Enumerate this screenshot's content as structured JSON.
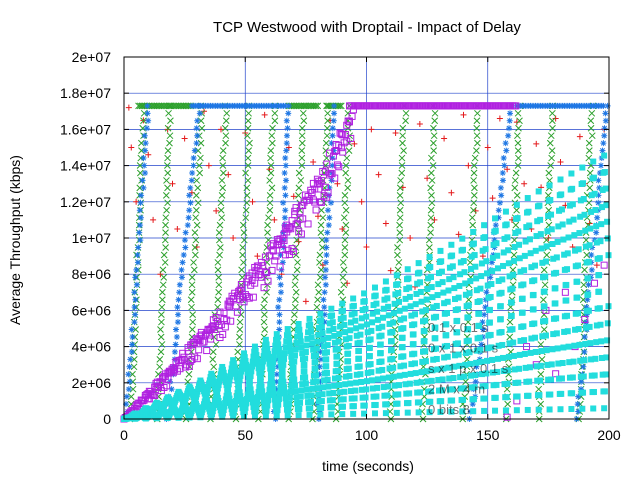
{
  "chart_data": {
    "type": "scatter",
    "title": "TCP Westwood with Droptail - Impact of Delay",
    "xlabel": "time (seconds)",
    "ylabel": "Average Throughput (kbps)",
    "xlim": [
      0,
      200
    ],
    "ylim": [
      0,
      20000000
    ],
    "x_ticks": [
      0,
      50,
      100,
      150,
      200
    ],
    "y_ticks": [
      0,
      2000000,
      4000000,
      6000000,
      8000000,
      10000000,
      12000000,
      14000000,
      16000000,
      18000000,
      20000000
    ],
    "x_tick_labels": [
      "0",
      "50",
      "100",
      "150",
      "200"
    ],
    "y_tick_labels": [
      "0",
      "2e+06",
      "4e+06",
      "6e+06",
      "8e+06",
      "1e+07",
      "1.2e+07",
      "1.4e+07",
      "1.6e+07",
      "1.8e+07",
      "2e+07"
    ],
    "grid": true,
    "legend_lines": [
      "0.1 x 0.1 s",
      "0 x 1 x 0.1 s",
      "s x 1 p x 0.1 s",
      "2 M x 4 m",
      "0 bits 8"
    ],
    "legend_position": "bottom-right (partially obscured)",
    "colors": {
      "red": "#e41a1c",
      "green": "#2ca02c",
      "blue": "#1f77e4",
      "magenta": "#b020e0",
      "cyan": "#22dddd",
      "grid": "#2244cc"
    },
    "series": [
      {
        "marker": "plus",
        "color": "#e41a1c",
        "pattern": "scattered",
        "cap": 17300000,
        "points": [
          [
            2,
            17200000
          ],
          [
            3,
            15000000
          ],
          [
            5,
            12000000
          ],
          [
            8,
            16500000
          ],
          [
            10,
            14600000
          ],
          [
            12,
            11000000
          ],
          [
            15,
            8000000
          ],
          [
            18,
            16000000
          ],
          [
            20,
            13000000
          ],
          [
            22,
            10500000
          ],
          [
            25,
            15500000
          ],
          [
            28,
            12500000
          ],
          [
            30,
            9500000
          ],
          [
            33,
            17000000
          ],
          [
            35,
            14000000
          ],
          [
            38,
            11500000
          ],
          [
            40,
            16000000
          ],
          [
            43,
            13500000
          ],
          [
            45,
            10000000
          ],
          [
            48,
            7000000
          ],
          [
            50,
            15800000
          ],
          [
            53,
            12000000
          ],
          [
            55,
            9000000
          ],
          [
            58,
            16800000
          ],
          [
            60,
            13800000
          ],
          [
            62,
            11000000
          ],
          [
            65,
            8000000
          ],
          [
            68,
            15000000
          ],
          [
            70,
            12300000
          ],
          [
            72,
            9800000
          ],
          [
            75,
            6500000
          ],
          [
            78,
            14200000
          ],
          [
            80,
            11200000
          ],
          [
            82,
            8500000
          ],
          [
            85,
            16500000
          ],
          [
            88,
            13000000
          ],
          [
            90,
            10500000
          ],
          [
            92,
            7500000
          ],
          [
            95,
            15200000
          ],
          [
            98,
            12000000
          ],
          [
            100,
            9500000
          ],
          [
            102,
            16000000
          ],
          [
            105,
            13500000
          ],
          [
            108,
            10800000
          ],
          [
            110,
            8200000
          ],
          [
            112,
            15800000
          ],
          [
            115,
            12800000
          ],
          [
            118,
            10000000
          ],
          [
            120,
            7300000
          ],
          [
            122,
            16300000
          ],
          [
            125,
            13300000
          ],
          [
            128,
            11000000
          ],
          [
            130,
            8700000
          ],
          [
            132,
            15500000
          ],
          [
            135,
            12500000
          ],
          [
            138,
            10200000
          ],
          [
            140,
            16800000
          ],
          [
            142,
            14000000
          ],
          [
            145,
            11500000
          ],
          [
            148,
            9000000
          ],
          [
            150,
            15000000
          ],
          [
            152,
            12200000
          ],
          [
            155,
            16600000
          ],
          [
            158,
            13800000
          ],
          [
            160,
            11000000
          ],
          [
            162,
            16400000
          ],
          [
            165,
            13000000
          ],
          [
            168,
            10500000
          ],
          [
            170,
            15200000
          ],
          [
            172,
            12800000
          ],
          [
            175,
            10000000
          ],
          [
            178,
            16600000
          ],
          [
            180,
            14200000
          ],
          [
            182,
            11800000
          ],
          [
            185,
            9500000
          ],
          [
            188,
            15600000
          ],
          [
            190,
            13000000
          ],
          [
            192,
            10800000
          ],
          [
            195,
            8500000
          ],
          [
            198,
            16000000
          ]
        ]
      },
      {
        "marker": "x",
        "color": "#2ca02c",
        "pattern": "ramps",
        "cap": 17300000,
        "ramps": [
          [
            3,
            8
          ],
          [
            14,
            19
          ],
          [
            26,
            32
          ],
          [
            36,
            42
          ],
          [
            46,
            52
          ],
          [
            56,
            62
          ],
          [
            68,
            74
          ],
          [
            78,
            84
          ],
          [
            88,
            93
          ],
          [
            110,
            116
          ],
          [
            123,
            128
          ],
          [
            140,
            146
          ],
          [
            158,
            163
          ],
          [
            171,
            177
          ],
          [
            188,
            193
          ]
        ],
        "band_cap": [
          [
            6,
            28
          ],
          [
            68,
            80
          ],
          [
            84,
            90
          ]
        ]
      },
      {
        "marker": "star",
        "color": "#1f77e4",
        "pattern": "ramps",
        "cap": 17300000,
        "ramps": [
          [
            1,
            10
          ],
          [
            18,
            31
          ],
          [
            62,
            68
          ],
          [
            80,
            87
          ],
          [
            143,
            160
          ],
          [
            187,
            199
          ]
        ],
        "band_cap": [
          [
            28,
            67
          ],
          [
            162,
            198
          ]
        ]
      },
      {
        "marker": "open-square",
        "color": "#b020e0",
        "pattern": "envelope",
        "cap": 17300000,
        "x_range": [
          0,
          95
        ],
        "upper": [
          [
            0,
            0
          ],
          [
            20,
            3000000
          ],
          [
            40,
            6000000
          ],
          [
            60,
            9500000
          ],
          [
            80,
            13500000
          ],
          [
            95,
            17300000
          ]
        ],
        "lower": [
          [
            0,
            0
          ],
          [
            20,
            2000000
          ],
          [
            40,
            4500000
          ],
          [
            60,
            7500000
          ],
          [
            80,
            11000000
          ],
          [
            95,
            16000000
          ]
        ],
        "band_cap": [
          [
            93,
            162
          ]
        ],
        "tail": [
          [
            158,
            100000
          ],
          [
            162,
            1000000
          ],
          [
            166,
            4000000
          ],
          [
            170,
            3000000
          ],
          [
            174,
            6000000
          ],
          [
            178,
            2500000
          ],
          [
            182,
            7000000
          ],
          [
            186,
            4000000
          ],
          [
            190,
            5500000
          ],
          [
            194,
            7500000
          ],
          [
            198,
            8500000
          ]
        ]
      },
      {
        "marker": "filled-square",
        "color": "#22dddd",
        "pattern": "oscillating-envelope",
        "x_range": [
          0,
          200
        ],
        "upper": [
          [
            0,
            0
          ],
          [
            30,
            2000000
          ],
          [
            60,
            4500000
          ],
          [
            100,
            7000000
          ],
          [
            140,
            10000000
          ],
          [
            170,
            12500000
          ],
          [
            200,
            14700000
          ]
        ],
        "lower": [
          [
            0,
            0
          ],
          [
            200,
            600000
          ]
        ],
        "period": 9
      }
    ]
  }
}
